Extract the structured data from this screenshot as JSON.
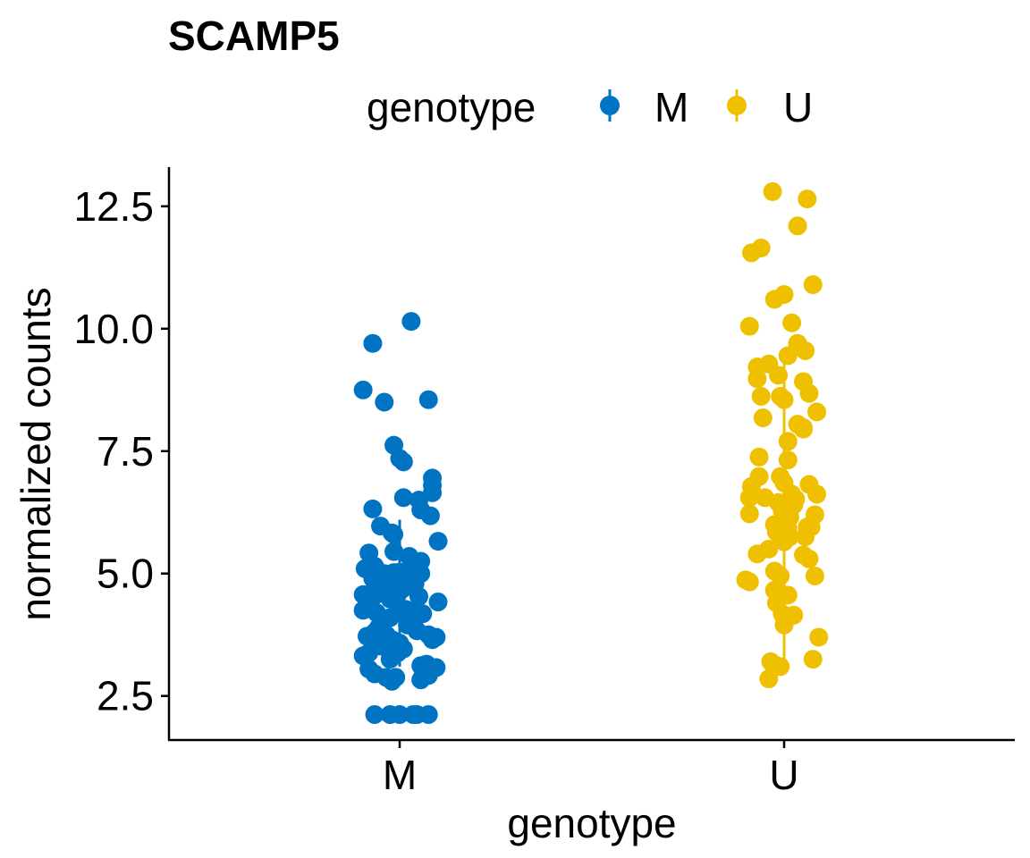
{
  "chart_data": {
    "type": "scatter",
    "title": "SCAMP5",
    "xlabel": "genotype",
    "ylabel": "normalized counts",
    "categories": [
      "M",
      "U"
    ],
    "y_ticks": [
      "2.5",
      "5.0",
      "7.5",
      "10.0",
      "12.5"
    ],
    "ylim": [
      1.6,
      13.3
    ],
    "grid": false,
    "legend": {
      "title": "genotype",
      "placement": "top",
      "entries": [
        {
          "label": "M",
          "color": "#0073C2"
        },
        {
          "label": "U",
          "color": "#EFC000"
        }
      ]
    },
    "series": [
      {
        "category": "M",
        "color": "#0073C2",
        "summary": {
          "mean": 4.6,
          "low": 3.1,
          "high": 6.1
        },
        "points": [
          {
            "x": -0.19,
            "y": 8.75
          },
          {
            "x": -0.14,
            "y": 9.7
          },
          {
            "x": 0.06,
            "y": 10.15
          },
          {
            "x": -0.08,
            "y": 8.5
          },
          {
            "x": 0.15,
            "y": 8.55
          },
          {
            "x": -0.03,
            "y": 7.62
          },
          {
            "x": 0.0,
            "y": 7.35
          },
          {
            "x": 0.02,
            "y": 7.28
          },
          {
            "x": -0.14,
            "y": 6.32
          },
          {
            "x": 0.02,
            "y": 6.55
          },
          {
            "x": 0.1,
            "y": 6.5
          },
          {
            "x": 0.11,
            "y": 6.3
          },
          {
            "x": 0.17,
            "y": 6.95
          },
          {
            "x": 0.17,
            "y": 6.8
          },
          {
            "x": 0.17,
            "y": 6.65
          },
          {
            "x": 0.16,
            "y": 6.18
          },
          {
            "x": -0.1,
            "y": 5.97
          },
          {
            "x": -0.04,
            "y": 5.83
          },
          {
            "x": -0.03,
            "y": 5.8
          },
          {
            "x": 0.2,
            "y": 5.66
          },
          {
            "x": -0.16,
            "y": 5.42
          },
          {
            "x": -0.03,
            "y": 5.45
          },
          {
            "x": 0.05,
            "y": 5.35
          },
          {
            "x": 0.11,
            "y": 5.25
          },
          {
            "x": -0.18,
            "y": 5.1
          },
          {
            "x": -0.13,
            "y": 5.15
          },
          {
            "x": -0.12,
            "y": 5.05
          },
          {
            "x": -0.08,
            "y": 5.0
          },
          {
            "x": -0.06,
            "y": 4.98
          },
          {
            "x": -0.03,
            "y": 5.02
          },
          {
            "x": 0.0,
            "y": 5.03
          },
          {
            "x": 0.03,
            "y": 4.98
          },
          {
            "x": 0.06,
            "y": 5.05
          },
          {
            "x": 0.11,
            "y": 5.0
          },
          {
            "x": -0.14,
            "y": 4.9
          },
          {
            "x": -0.13,
            "y": 4.82
          },
          {
            "x": -0.08,
            "y": 4.85
          },
          {
            "x": -0.05,
            "y": 4.72
          },
          {
            "x": -0.02,
            "y": 4.8
          },
          {
            "x": 0.02,
            "y": 4.7
          },
          {
            "x": 0.05,
            "y": 4.82
          },
          {
            "x": 0.08,
            "y": 4.8
          },
          {
            "x": -0.19,
            "y": 4.57
          },
          {
            "x": -0.17,
            "y": 4.5
          },
          {
            "x": -0.15,
            "y": 4.45
          },
          {
            "x": -0.13,
            "y": 4.55
          },
          {
            "x": -0.07,
            "y": 4.62
          },
          {
            "x": -0.05,
            "y": 4.48
          },
          {
            "x": -0.01,
            "y": 4.58
          },
          {
            "x": 0.1,
            "y": 4.53
          },
          {
            "x": 0.2,
            "y": 4.42
          },
          {
            "x": -0.19,
            "y": 4.25
          },
          {
            "x": -0.16,
            "y": 4.3
          },
          {
            "x": -0.12,
            "y": 4.2
          },
          {
            "x": -0.09,
            "y": 4.05
          },
          {
            "x": -0.05,
            "y": 4.1
          },
          {
            "x": 0.0,
            "y": 4.22
          },
          {
            "x": 0.03,
            "y": 4.27
          },
          {
            "x": 0.06,
            "y": 4.2
          },
          {
            "x": 0.09,
            "y": 4.13
          },
          {
            "x": 0.12,
            "y": 4.18
          },
          {
            "x": 0.04,
            "y": 4.05
          },
          {
            "x": 0.07,
            "y": 4.02
          },
          {
            "x": -0.17,
            "y": 3.72
          },
          {
            "x": -0.13,
            "y": 3.8
          },
          {
            "x": -0.11,
            "y": 3.9
          },
          {
            "x": -0.07,
            "y": 3.75
          },
          {
            "x": -0.04,
            "y": 3.65
          },
          {
            "x": 0.0,
            "y": 3.58
          },
          {
            "x": 0.04,
            "y": 3.95
          },
          {
            "x": 0.09,
            "y": 3.83
          },
          {
            "x": 0.15,
            "y": 3.75
          },
          {
            "x": 0.17,
            "y": 3.65
          },
          {
            "x": 0.19,
            "y": 3.7
          },
          {
            "x": -0.1,
            "y": 3.52
          },
          {
            "x": -0.04,
            "y": 3.42
          },
          {
            "x": -0.01,
            "y": 3.38
          },
          {
            "x": 0.02,
            "y": 3.46
          },
          {
            "x": -0.19,
            "y": 3.32
          },
          {
            "x": -0.16,
            "y": 3.38
          },
          {
            "x": -0.05,
            "y": 3.25
          },
          {
            "x": 0.11,
            "y": 3.12
          },
          {
            "x": 0.14,
            "y": 3.15
          },
          {
            "x": 0.19,
            "y": 3.08
          },
          {
            "x": -0.16,
            "y": 3.05
          },
          {
            "x": -0.13,
            "y": 2.95
          },
          {
            "x": -0.07,
            "y": 2.88
          },
          {
            "x": -0.04,
            "y": 2.8
          },
          {
            "x": -0.02,
            "y": 2.88
          },
          {
            "x": 0.11,
            "y": 2.83
          },
          {
            "x": 0.15,
            "y": 2.92
          },
          {
            "x": 0.12,
            "y": 2.9
          },
          {
            "x": -0.13,
            "y": 2.12
          },
          {
            "x": -0.05,
            "y": 2.12
          },
          {
            "x": 0.0,
            "y": 2.12
          },
          {
            "x": 0.07,
            "y": 2.12
          },
          {
            "x": 0.09,
            "y": 2.12
          },
          {
            "x": 0.15,
            "y": 2.12
          }
        ]
      },
      {
        "category": "U",
        "color": "#EFC000",
        "summary": {
          "mean": 6.1,
          "low": 3.1,
          "high": 9.3
        },
        "points": [
          {
            "x": -0.06,
            "y": 12.8
          },
          {
            "x": 0.12,
            "y": 12.65
          },
          {
            "x": 0.07,
            "y": 12.1
          },
          {
            "x": -0.12,
            "y": 11.65
          },
          {
            "x": -0.17,
            "y": 11.55
          },
          {
            "x": 0.15,
            "y": 10.9
          },
          {
            "x": 0.0,
            "y": 10.7
          },
          {
            "x": -0.05,
            "y": 10.6
          },
          {
            "x": 0.04,
            "y": 10.12
          },
          {
            "x": -0.18,
            "y": 10.05
          },
          {
            "x": 0.07,
            "y": 9.7
          },
          {
            "x": 0.11,
            "y": 9.55
          },
          {
            "x": 0.02,
            "y": 9.45
          },
          {
            "x": -0.14,
            "y": 9.22
          },
          {
            "x": -0.08,
            "y": 9.28
          },
          {
            "x": -0.14,
            "y": 8.98
          },
          {
            "x": -0.03,
            "y": 9.05
          },
          {
            "x": 0.1,
            "y": 8.92
          },
          {
            "x": 0.13,
            "y": 8.68
          },
          {
            "x": -0.12,
            "y": 8.62
          },
          {
            "x": -0.02,
            "y": 8.62
          },
          {
            "x": 0.0,
            "y": 8.55
          },
          {
            "x": 0.17,
            "y": 8.3
          },
          {
            "x": -0.11,
            "y": 8.18
          },
          {
            "x": 0.07,
            "y": 8.05
          },
          {
            "x": 0.1,
            "y": 7.98
          },
          {
            "x": 0.1,
            "y": 7.95
          },
          {
            "x": 0.02,
            "y": 7.7
          },
          {
            "x": -0.13,
            "y": 7.38
          },
          {
            "x": 0.02,
            "y": 7.32
          },
          {
            "x": -0.13,
            "y": 6.98
          },
          {
            "x": -0.02,
            "y": 6.98
          },
          {
            "x": 0.0,
            "y": 6.85
          },
          {
            "x": 0.13,
            "y": 6.82
          },
          {
            "x": -0.17,
            "y": 6.78
          },
          {
            "x": -0.18,
            "y": 6.55
          },
          {
            "x": -0.1,
            "y": 6.55
          },
          {
            "x": 0.04,
            "y": 6.62
          },
          {
            "x": 0.06,
            "y": 6.52
          },
          {
            "x": 0.17,
            "y": 6.62
          },
          {
            "x": -0.03,
            "y": 6.45
          },
          {
            "x": 0.0,
            "y": 6.35
          },
          {
            "x": 0.05,
            "y": 6.4
          },
          {
            "x": -0.18,
            "y": 6.22
          },
          {
            "x": -0.01,
            "y": 6.28
          },
          {
            "x": 0.03,
            "y": 6.15
          },
          {
            "x": 0.16,
            "y": 6.2
          },
          {
            "x": -0.05,
            "y": 6.0
          },
          {
            "x": 0.01,
            "y": 6.05
          },
          {
            "x": 0.14,
            "y": 5.95
          },
          {
            "x": 0.12,
            "y": 5.95
          },
          {
            "x": -0.04,
            "y": 5.85
          },
          {
            "x": -0.02,
            "y": 5.78
          },
          {
            "x": 0.02,
            "y": 5.92
          },
          {
            "x": 0.03,
            "y": 5.75
          },
          {
            "x": 0.11,
            "y": 5.75
          },
          {
            "x": 0.0,
            "y": 5.65
          },
          {
            "x": -0.08,
            "y": 5.5
          },
          {
            "x": -0.14,
            "y": 5.4
          },
          {
            "x": 0.1,
            "y": 5.38
          },
          {
            "x": 0.13,
            "y": 5.3
          },
          {
            "x": -0.05,
            "y": 5.05
          },
          {
            "x": -0.02,
            "y": 4.95
          },
          {
            "x": 0.16,
            "y": 4.95
          },
          {
            "x": -0.2,
            "y": 4.87
          },
          {
            "x": -0.18,
            "y": 4.83
          },
          {
            "x": -0.05,
            "y": 4.66
          },
          {
            "x": 0.02,
            "y": 4.56
          },
          {
            "x": -0.02,
            "y": 4.52
          },
          {
            "x": -0.01,
            "y": 4.18
          },
          {
            "x": 0.0,
            "y": 4.1
          },
          {
            "x": 0.05,
            "y": 4.15
          },
          {
            "x": -0.04,
            "y": 4.4
          },
          {
            "x": 0.0,
            "y": 3.95
          },
          {
            "x": 0.18,
            "y": 3.7
          },
          {
            "x": 0.15,
            "y": 3.25
          },
          {
            "x": -0.07,
            "y": 3.2
          },
          {
            "x": -0.04,
            "y": 3.12
          },
          {
            "x": -0.02,
            "y": 3.1
          },
          {
            "x": -0.08,
            "y": 2.85
          }
        ]
      }
    ]
  }
}
